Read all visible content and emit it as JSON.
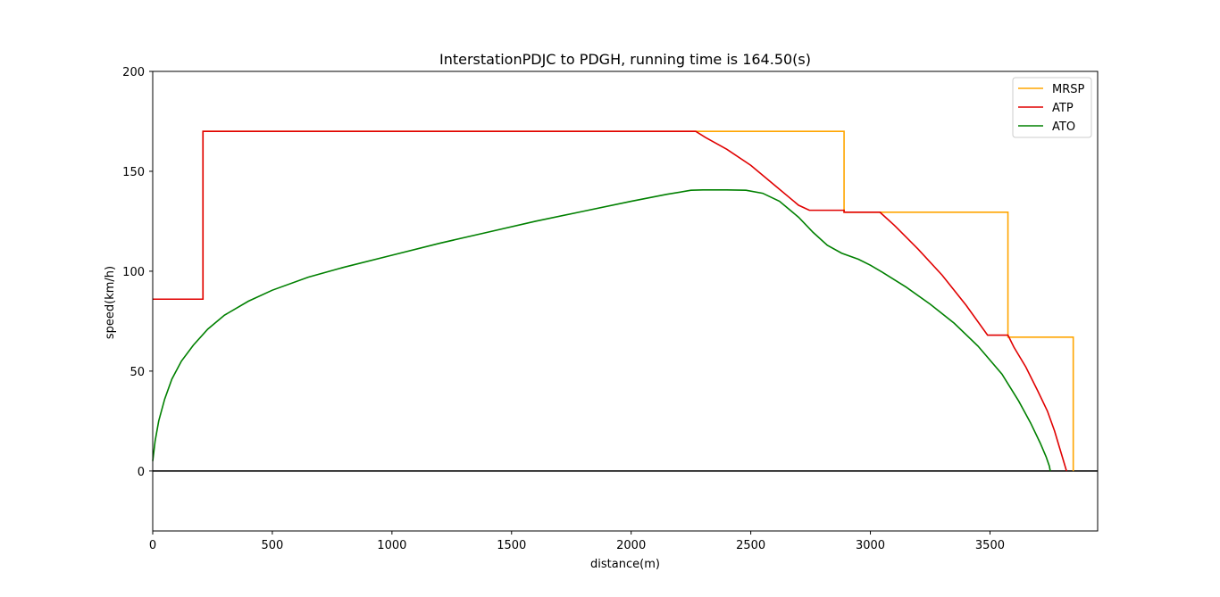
{
  "chart_data": {
    "type": "line",
    "title": "InterstationPDJC to PDGH, running time is 164.50(s)",
    "xlabel": "distance(m)",
    "ylabel": "speed(km/h)",
    "xlim": [
      0,
      3950
    ],
    "ylim": [
      -30,
      200
    ],
    "xticks": [
      "0",
      "500",
      "1000",
      "1500",
      "2000",
      "2500",
      "3000",
      "3500"
    ],
    "xtick_values": [
      0,
      500,
      1000,
      1500,
      2000,
      2500,
      3000,
      3500
    ],
    "yticks": [
      "0",
      "50",
      "100",
      "150",
      "200"
    ],
    "ytick_values": [
      0,
      50,
      100,
      150,
      200
    ],
    "grid": false,
    "legend": "top-right",
    "zero_line": {
      "color": "#000000",
      "y": 0
    },
    "series": [
      {
        "name": "MRSP",
        "color": "#ffa500",
        "step": true,
        "x": [
          0,
          210,
          210,
          2890,
          2890,
          3575,
          3575,
          3848,
          3848
        ],
        "y": [
          86,
          86,
          170,
          170,
          129.5,
          129.5,
          67,
          67,
          0
        ]
      },
      {
        "name": "ATP",
        "color": "#e00000",
        "step": false,
        "x": [
          0,
          210,
          210,
          2270,
          2310,
          2400,
          2500,
          2600,
          2700,
          2745,
          2890,
          2890,
          3040,
          3100,
          3200,
          3300,
          3400,
          3490,
          3575,
          3600,
          3650,
          3700,
          3740,
          3770,
          3790,
          3805,
          3815,
          3820
        ],
        "y": [
          86,
          86,
          170,
          170,
          167,
          161,
          153,
          143,
          133,
          130.5,
          130.5,
          129.5,
          129.5,
          123,
          111,
          98,
          83,
          68,
          68,
          62,
          52,
          40,
          30,
          20,
          12,
          6,
          2,
          0
        ]
      },
      {
        "name": "ATO",
        "color": "#008000",
        "step": false,
        "x": [
          0,
          10,
          25,
          50,
          80,
          120,
          170,
          230,
          300,
          400,
          500,
          650,
          800,
          1000,
          1200,
          1400,
          1600,
          1800,
          2000,
          2150,
          2250,
          2300,
          2400,
          2480,
          2550,
          2620,
          2700,
          2760,
          2820,
          2880,
          2950,
          3000,
          3050,
          3150,
          3250,
          3350,
          3450,
          3550,
          3620,
          3670,
          3710,
          3735,
          3748,
          3752
        ],
        "y": [
          5,
          15,
          25,
          36,
          46,
          55,
          63,
          71,
          78,
          85,
          90.5,
          97,
          102,
          108,
          114,
          119.5,
          125,
          130,
          135,
          138.5,
          140.5,
          140.7,
          140.7,
          140.5,
          139,
          135,
          127,
          119.5,
          113,
          109,
          106,
          103,
          99.5,
          92,
          83.5,
          74,
          62.5,
          48.5,
          35,
          24,
          14,
          7,
          2.5,
          0
        ]
      }
    ]
  }
}
